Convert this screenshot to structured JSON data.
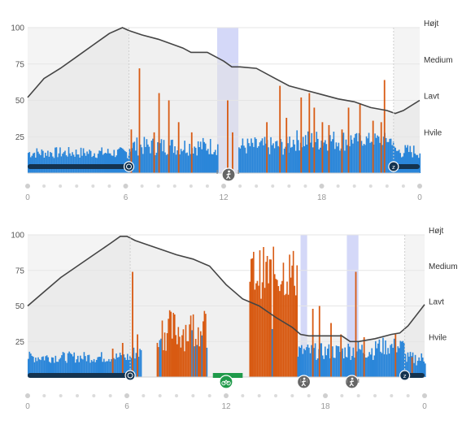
{
  "colors": {
    "rest": "#2b86d9",
    "stress": "#d85a12",
    "battery_line": "#444444",
    "battery_fill": "#e3e3e3",
    "activity_band": "#d4d8f8",
    "sleep_bar": "#14334f",
    "active_bar": "#1f9a4a",
    "grid": "#e6e6e6"
  },
  "chart_data": [
    {
      "type": "bar",
      "y_ticks": [
        "100",
        "75",
        "50",
        "25"
      ],
      "y_tick_values": [
        100,
        75,
        50,
        25
      ],
      "level_labels": [
        "Højt",
        "Medium",
        "Lavt",
        "Hvile"
      ],
      "x_ticks": [
        "0",
        "6",
        "12",
        "18",
        "0"
      ],
      "x_tick_hours": [
        0,
        6,
        12,
        18,
        24
      ],
      "ylim": [
        0,
        100
      ],
      "xlim": [
        0,
        24
      ],
      "sleep_intervals": [
        [
          0,
          6.2
        ],
        [
          22.4,
          24
        ]
      ],
      "activity_bands": [
        [
          11.6,
          12.9
        ]
      ],
      "timeline_icons": [
        {
          "icon": "alarm-clock-icon",
          "hour": 6.2
        },
        {
          "icon": "walking-icon",
          "hour": 12.3
        },
        {
          "icon": "sleep-icon",
          "hour": 22.4
        }
      ],
      "body_battery": {
        "hours": [
          0,
          1,
          2,
          3,
          4,
          5,
          5.8,
          6.2,
          7,
          8,
          9,
          9.5,
          10,
          11,
          11.5,
          12,
          12.5,
          13,
          14,
          15,
          16,
          17,
          18,
          19,
          20,
          21,
          22,
          22.5,
          23,
          24
        ],
        "values": [
          52,
          65,
          72,
          80,
          88,
          96,
          100,
          98,
          95,
          92,
          88,
          86,
          83,
          83,
          80,
          77,
          73,
          73,
          72,
          66,
          60,
          57,
          54,
          51,
          49,
          45,
          43,
          41,
          43,
          50
        ]
      },
      "stress_segments": [
        {
          "from": 0,
          "to": 6.2,
          "rest": [
            10,
            18
          ],
          "spikes": []
        },
        {
          "from": 6.2,
          "to": 11.6,
          "rest": [
            12,
            25
          ],
          "spikes": [
            [
              6.3,
              30
            ],
            [
              6.8,
              72
            ],
            [
              7.7,
              28
            ],
            [
              8.0,
              55
            ],
            [
              8.6,
              50
            ],
            [
              9.2,
              35
            ],
            [
              10.0,
              28
            ]
          ]
        },
        {
          "from": 11.6,
          "to": 12.9,
          "rest": [
            0,
            0
          ],
          "spikes": [
            [
              12.2,
              50
            ],
            [
              12.5,
              28
            ]
          ]
        },
        {
          "from": 12.9,
          "to": 16.0,
          "rest": [
            12,
            25
          ],
          "spikes": [
            [
              14.6,
              35
            ],
            [
              15.4,
              60
            ],
            [
              15.8,
              38
            ]
          ]
        },
        {
          "from": 16.0,
          "to": 19.8,
          "rest": [
            15,
            30
          ],
          "spikes": [
            [
              16.7,
              52
            ],
            [
              17.2,
              55
            ],
            [
              17.5,
              45
            ],
            [
              18.0,
              35
            ],
            [
              18.4,
              33
            ],
            [
              19.2,
              30
            ],
            [
              19.6,
              45
            ]
          ]
        },
        {
          "from": 19.8,
          "to": 22.4,
          "rest": [
            18,
            28
          ],
          "spikes": [
            [
              20.3,
              48
            ],
            [
              21.1,
              36
            ],
            [
              21.6,
              35
            ],
            [
              21.8,
              64
            ]
          ]
        },
        {
          "from": 22.4,
          "to": 24,
          "rest": [
            10,
            20
          ],
          "spikes": []
        }
      ]
    },
    {
      "type": "bar",
      "y_ticks": [
        "100",
        "75",
        "50",
        "25"
      ],
      "y_tick_values": [
        100,
        75,
        50,
        25
      ],
      "level_labels": [
        "Højt",
        "Medium",
        "Lavt",
        "Hvile"
      ],
      "x_ticks": [
        "0",
        "6",
        "12",
        "18",
        "0"
      ],
      "x_tick_hours": [
        0,
        6,
        12,
        18,
        24
      ],
      "ylim": [
        0,
        100
      ],
      "xlim": [
        0,
        24
      ],
      "sleep_intervals": [
        [
          0,
          6.2
        ],
        [
          22.8,
          24
        ]
      ],
      "activity_bands": [
        [
          16.5,
          16.9
        ],
        [
          19.3,
          20.0
        ]
      ],
      "timeline_icons": [
        {
          "icon": "alarm-clock-icon",
          "hour": 6.2
        },
        {
          "icon": "bike-icon",
          "hour": 12.0
        },
        {
          "icon": "walking-icon",
          "hour": 16.7
        },
        {
          "icon": "walking-icon",
          "hour": 19.6
        },
        {
          "icon": "sleep-icon",
          "hour": 22.8
        }
      ],
      "active_bar": [
        11.2,
        13.0
      ],
      "body_battery": {
        "hours": [
          0,
          1,
          2,
          3,
          4,
          5,
          5.6,
          6,
          6.5,
          7,
          8,
          9,
          10,
          11,
          12,
          13,
          14,
          15,
          16,
          16.5,
          17,
          18,
          19,
          19.5,
          20,
          21,
          22,
          22.5,
          23,
          24
        ],
        "values": [
          50,
          60,
          70,
          78,
          86,
          94,
          99,
          99,
          96,
          94,
          90,
          86,
          83,
          78,
          65,
          55,
          50,
          42,
          35,
          30,
          29,
          29,
          29,
          25,
          25,
          27,
          30,
          31,
          36,
          51
        ]
      },
      "stress_segments": [
        {
          "from": 0,
          "to": 6.3,
          "rest": [
            10,
            18
          ],
          "spikes": [
            [
              5.1,
              20
            ],
            [
              5.7,
              24
            ]
          ]
        },
        {
          "from": 6.3,
          "to": 6.9,
          "rest": [
            12,
            22
          ],
          "spikes": [
            [
              6.3,
              74
            ],
            [
              6.6,
              30
            ]
          ]
        },
        {
          "from": 7.8,
          "to": 10.8,
          "rest": [
            0,
            0
          ],
          "spikes": [],
          "stress_band": [
            18,
            48
          ]
        },
        {
          "from": 13.4,
          "to": 16.3,
          "rest": [
            0,
            0
          ],
          "spikes": [],
          "stress_band": [
            55,
            92
          ]
        },
        {
          "from": 16.3,
          "to": 19.2,
          "rest": [
            12,
            24
          ],
          "spikes": [
            [
              17.2,
              48
            ],
            [
              17.6,
              50
            ],
            [
              18.3,
              38
            ],
            [
              18.9,
              30
            ]
          ]
        },
        {
          "from": 19.2,
          "to": 21.0,
          "rest": [
            12,
            26
          ],
          "spikes": [
            [
              19.8,
              74
            ],
            [
              20.3,
              28
            ]
          ]
        },
        {
          "from": 21.0,
          "to": 22.8,
          "rest": [
            15,
            28
          ],
          "spikes": [
            [
              22.2,
              30
            ]
          ]
        },
        {
          "from": 22.8,
          "to": 24,
          "rest": [
            8,
            18
          ],
          "spikes": [
            [
              23.2,
              14
            ]
          ]
        }
      ]
    }
  ]
}
